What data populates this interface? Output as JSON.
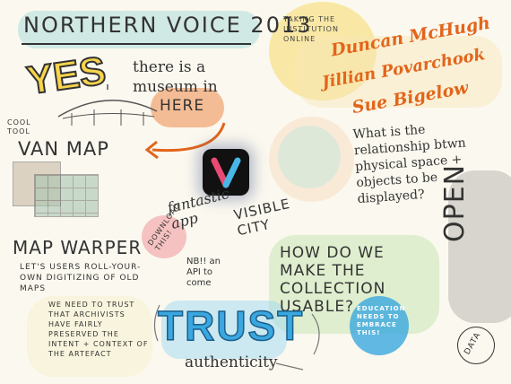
{
  "title": "NORTHERN VOICE 2013",
  "subtitle": "TAKING THE INSTITUTION ONLINE",
  "speakers": [
    "Duncan McHugh",
    "Jillian Povarchook",
    "Sue Bigelow"
  ],
  "yes": "YES",
  "museum_text": "there is a museum in",
  "here": "HERE",
  "cool_tool": "COOL TOOL",
  "van_map": "VAN MAP",
  "question_1": "What is the relationship btwn physical space + objects to be displayed?",
  "fantastic": "fantastic app",
  "visible_city": "VISIBLE CITY",
  "map_warper": "MAP WARPER",
  "map_warper_desc": "LET'S USERS ROLL-YOUR-OWN DIGITIZING OF OLD MAPS",
  "download": "DOWNLOAD THIS!",
  "nb_api": "NB!! an API to come",
  "question_2": "HOW DO WE MAKE THE COLLECTION USABLE?",
  "education": "EDUCATION NEEDS TO EMBRACE THIS!",
  "trust_note": "WE NEED TO TRUST THAT ARCHIVISTS HAVE FAIRLY PRESERVED THE INTENT + CONTEXT OF THE ARTEFACT",
  "trust": "TRUST",
  "authenticity": "authenticity",
  "open": "OPEN",
  "data": "DATA",
  "colors": {
    "yellow": "#f7d44c",
    "orange": "#ef8a4a",
    "teal": "#8fd3cf",
    "blue": "#3aa7e0",
    "pink": "#f19fa2",
    "green": "#c9e6b2",
    "gray": "#b9b8b3"
  }
}
